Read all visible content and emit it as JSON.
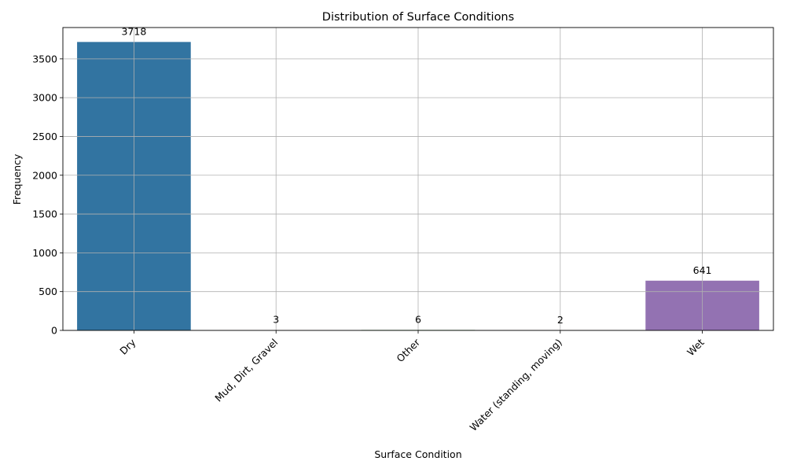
{
  "chart_data": {
    "type": "bar",
    "title": "Distribution of Surface Conditions",
    "xlabel": "Surface Condition",
    "ylabel": "Frequency",
    "categories": [
      "Dry",
      "Mud, Dirt, Gravel",
      "Other",
      "Water (standing, moving)",
      "Wet"
    ],
    "values": [
      3718,
      3,
      6,
      2,
      641
    ],
    "data_labels": [
      "3718",
      "3",
      "6",
      "2",
      "641"
    ],
    "colors": [
      "#3274a1",
      "#e1812c",
      "#3a923a",
      "#c03d3e",
      "#9372b2"
    ],
    "ylim": [
      0,
      3904
    ],
    "yticks": [
      0,
      500,
      1000,
      1500,
      2000,
      2500,
      3000,
      3500
    ],
    "ytick_labels": [
      "0",
      "500",
      "1000",
      "1500",
      "2000",
      "2500",
      "3000",
      "3500"
    ],
    "grid": true
  }
}
